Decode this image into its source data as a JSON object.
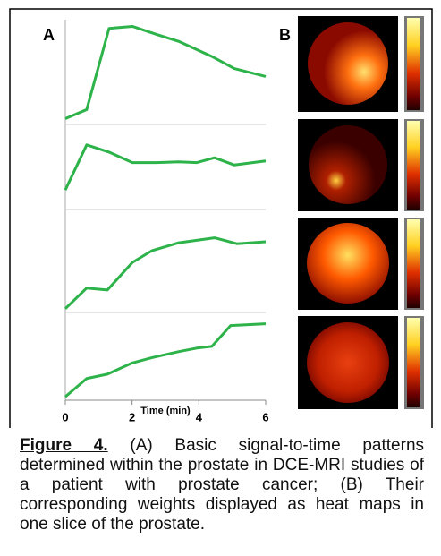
{
  "panel_labels": [
    "A",
    "B"
  ],
  "x_axis": {
    "label": "Time (min)",
    "xlim": [
      0,
      6
    ],
    "xticks": [
      0,
      2,
      4,
      6
    ]
  },
  "chart_data": [
    {
      "type": "line",
      "color": "#2db34a",
      "ylim": [
        0,
        1
      ],
      "x": [
        0,
        0.64,
        1.31,
        2.01,
        2.73,
        3.4,
        4.39,
        5.06,
        6
      ],
      "values": [
        0.04,
        0.13,
        0.94,
        0.96,
        0.88,
        0.81,
        0.66,
        0.54,
        0.46
      ]
    },
    {
      "type": "line",
      "color": "#2db34a",
      "ylim": [
        0,
        1
      ],
      "x": [
        0,
        0.64,
        1.31,
        2.01,
        2.73,
        3.4,
        3.94,
        4.47,
        5.06,
        6
      ],
      "values": [
        0.22,
        0.78,
        0.69,
        0.56,
        0.56,
        0.57,
        0.56,
        0.62,
        0.53,
        0.58
      ]
    },
    {
      "type": "line",
      "color": "#2db34a",
      "ylim": [
        0,
        1
      ],
      "x": [
        0,
        0.64,
        1.26,
        2.01,
        2.6,
        3.4,
        4.47,
        5.14,
        6
      ],
      "values": [
        0.02,
        0.23,
        0.21,
        0.49,
        0.61,
        0.69,
        0.74,
        0.68,
        0.7
      ]
    },
    {
      "type": "line",
      "color": "#2db34a",
      "ylim": [
        0,
        1
      ],
      "x": [
        0,
        0.64,
        1.26,
        2.01,
        2.6,
        3.4,
        3.94,
        4.39,
        4.95,
        6
      ],
      "values": [
        0.04,
        0.25,
        0.3,
        0.43,
        0.49,
        0.56,
        0.6,
        0.62,
        0.86,
        0.88
      ]
    }
  ],
  "caption": {
    "label": "Figure 4.",
    "text": " (A) Basic signal-to-time patterns determined within the prostate in DCE-MRI studies of a patient with prostate cancer; (B) Their corresponding weights displayed as heat maps in one slice of the prostate."
  }
}
